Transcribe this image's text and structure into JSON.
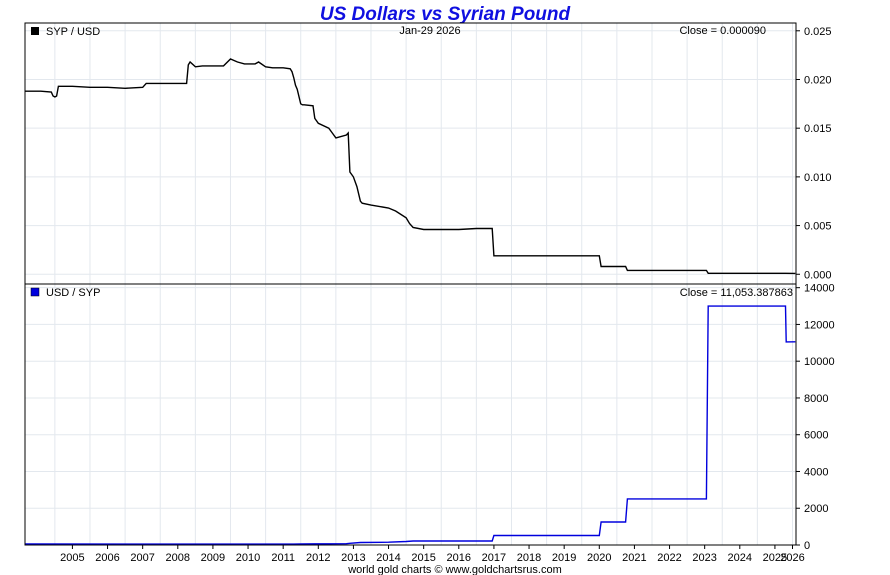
{
  "title": "US Dollars vs Syrian Pound",
  "date_label": "Jan-29  2026",
  "footer": "world gold charts © www.goldchartsrus.com",
  "colors": {
    "top_line": "#000000",
    "bottom_line": "#0000dd",
    "grid": "#e3e8ee",
    "title": "#1010e0"
  },
  "chart_data": [
    {
      "type": "line",
      "legend": "SYP / USD",
      "close_label": "Close = 0.000090",
      "xlim": [
        2004.15,
        2026.1
      ],
      "ylim": [
        -0.001,
        0.0258
      ],
      "yticks": [
        "0.000",
        "0.005",
        "0.010",
        "0.015",
        "0.020",
        "0.025"
      ],
      "grid": true,
      "x": [
        2004.15,
        2004.6,
        2004.9,
        2004.95,
        2005.0,
        2005.05,
        2005.1,
        2005.5,
        2006.0,
        2006.5,
        2007.0,
        2007.5,
        2007.6,
        2008.0,
        2008.5,
        2008.75,
        2008.8,
        2008.85,
        2009.0,
        2009.2,
        2009.5,
        2009.8,
        2010.0,
        2010.2,
        2010.4,
        2010.7,
        2010.8,
        2011.0,
        2011.2,
        2011.5,
        2011.7,
        2011.75,
        2011.8,
        2011.85,
        2011.9,
        2012.0,
        2012.05,
        2012.1,
        2012.35,
        2012.4,
        2012.5,
        2012.8,
        2012.9,
        2013.0,
        2013.3,
        2013.35,
        2013.4,
        2013.5,
        2013.6,
        2013.7,
        2013.75,
        2014.0,
        2014.5,
        2014.7,
        2015.0,
        2015.1,
        2015.2,
        2015.5,
        2016.0,
        2016.5,
        2017.0,
        2017.45,
        2017.5,
        2018.0,
        2019.0,
        2020.0,
        2020.5,
        2020.55,
        2021.0,
        2021.25,
        2021.3,
        2022.0,
        2023.0,
        2023.55,
        2023.6,
        2024.0,
        2025.0,
        2025.8,
        2026.08
      ],
      "y": [
        0.0188,
        0.0188,
        0.0187,
        0.0183,
        0.0182,
        0.0183,
        0.0193,
        0.0193,
        0.0192,
        0.0192,
        0.0191,
        0.0192,
        0.0196,
        0.0196,
        0.0196,
        0.0196,
        0.0215,
        0.0218,
        0.0213,
        0.0214,
        0.0214,
        0.0214,
        0.0221,
        0.0218,
        0.0216,
        0.0216,
        0.0218,
        0.0213,
        0.0212,
        0.0212,
        0.0211,
        0.0208,
        0.0202,
        0.0194,
        0.019,
        0.0175,
        0.0174,
        0.0174,
        0.0173,
        0.016,
        0.0155,
        0.015,
        0.0145,
        0.014,
        0.0143,
        0.0145,
        0.0105,
        0.01,
        0.009,
        0.0075,
        0.0073,
        0.0071,
        0.0068,
        0.0065,
        0.0058,
        0.0052,
        0.0048,
        0.0046,
        0.0046,
        0.0046,
        0.0047,
        0.0047,
        0.0019,
        0.0019,
        0.0019,
        0.0019,
        0.0019,
        0.0008,
        0.0008,
        0.0008,
        0.0004,
        0.0004,
        0.0004,
        0.0004,
        0.0001,
        0.0001,
        0.0001,
        0.0001,
        9e-05
      ]
    },
    {
      "type": "line",
      "legend": "USD / SYP",
      "close_label": "Close = 11,053.387863",
      "xlim": [
        2004.15,
        2026.1
      ],
      "ylim": [
        0,
        14200
      ],
      "yticks": [
        "0",
        "2000",
        "4000",
        "6000",
        "8000",
        "10000",
        "12000",
        "14000"
      ],
      "xticks": [
        "2005",
        "2006",
        "2007",
        "2008",
        "2009",
        "2010",
        "2011",
        "2012",
        "2013",
        "2014",
        "2015",
        "2016",
        "2017",
        "2018",
        "2019",
        "2020",
        "2021",
        "2022",
        "2023",
        "2024",
        "2025",
        "2026"
      ],
      "grid": true,
      "x": [
        2004.15,
        2008.8,
        2011.8,
        2012.0,
        2012.4,
        2012.8,
        2013.3,
        2013.4,
        2013.7,
        2014.5,
        2015.0,
        2015.2,
        2017.45,
        2017.5,
        2020.5,
        2020.55,
        2021.25,
        2021.3,
        2023.55,
        2023.6,
        2025.8,
        2025.82,
        2026.08
      ],
      "y": [
        53,
        47,
        50,
        57,
        63,
        68,
        71,
        90,
        135,
        150,
        190,
        220,
        215,
        515,
        515,
        1250,
        1250,
        2510,
        2510,
        13000,
        13000,
        11050,
        11053
      ]
    }
  ]
}
